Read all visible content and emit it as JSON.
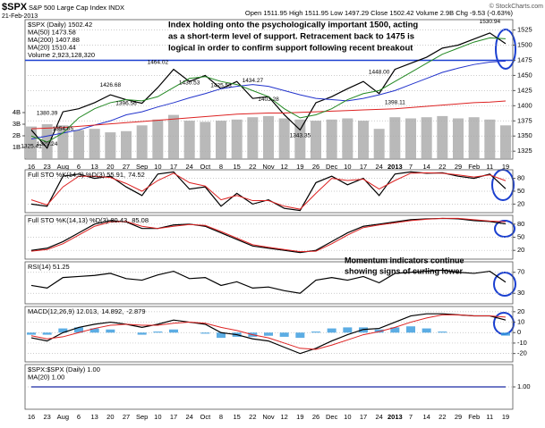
{
  "header": {
    "symbol": "$SPX",
    "name": "S&P 500 Large Cap Index INDX",
    "date": "21-Feb-2013",
    "quote": "Open 1511.95  High 1511.95  Low 1497.29  Close 1502.42  Volume 2.9B  Chg -9.53 (-0.63%)",
    "source": "© StockCharts.com"
  },
  "chart_data": [
    {
      "type": "line",
      "categories": [
        "16",
        "23",
        "Aug",
        "6",
        "13",
        "20",
        "27",
        "Sep",
        "10",
        "17",
        "24",
        "Oct",
        "8",
        "15",
        "22",
        "Nov",
        "12",
        "19",
        "26",
        "Dec",
        "10",
        "17",
        "24",
        "2013",
        "7",
        "14",
        "22",
        "29",
        "Feb",
        "11",
        "19"
      ],
      "ylim": [
        1312,
        1542
      ],
      "yticks": [
        1325,
        1350,
        1375,
        1400,
        1425,
        1450,
        1475,
        1500,
        1525
      ],
      "grid": true,
      "support": 1475,
      "series": [
        {
          "name": "$SPX (Daily) 1502.42",
          "color": "#000000",
          "values": [
            1360,
            1330,
            1390,
            1395,
            1405,
            1418,
            1410,
            1404,
            1430,
            1460,
            1440,
            1450,
            1428,
            1440,
            1412,
            1415,
            1385,
            1360,
            1405,
            1415,
            1428,
            1440,
            1420,
            1460,
            1470,
            1480,
            1495,
            1500,
            1510,
            1520,
            1502.42
          ]
        },
        {
          "name": "MA(50) 1473.58",
          "color": "#2233cc",
          "values": [
            1345,
            1350,
            1355,
            1360,
            1368,
            1375,
            1385,
            1390,
            1398,
            1405,
            1413,
            1420,
            1428,
            1432,
            1435,
            1432,
            1425,
            1418,
            1412,
            1410,
            1408,
            1412,
            1418,
            1425,
            1435,
            1445,
            1455,
            1462,
            1468,
            1472,
            1473.58
          ]
        },
        {
          "name": "MA(200) 1407.88",
          "color": "#dd2222",
          "values": [
            1362,
            1363,
            1364,
            1366,
            1368,
            1370,
            1372,
            1374,
            1376,
            1378,
            1380,
            1382,
            1384,
            1386,
            1387,
            1388,
            1388,
            1389,
            1390,
            1391,
            1392,
            1393,
            1394,
            1395,
            1397,
            1399,
            1401,
            1403,
            1405,
            1406,
            1407.88
          ]
        },
        {
          "name": "MA(20) 1510.44",
          "color": "#228822",
          "values": [
            1350,
            1340,
            1355,
            1380,
            1395,
            1405,
            1410,
            1408,
            1415,
            1430,
            1445,
            1448,
            1440,
            1435,
            1425,
            1415,
            1395,
            1380,
            1385,
            1395,
            1410,
            1420,
            1425,
            1440,
            1455,
            1470,
            1485,
            1495,
            1505,
            1512,
            1510.44
          ]
        }
      ],
      "volume": {
        "name": "Volume 2,923,128,320",
        "color": "#a8a8a8",
        "ylim": [
          0,
          12
        ],
        "yticks": [
          {
            "value": 1,
            "label": "1B"
          },
          {
            "value": 2,
            "label": "2B"
          },
          {
            "value": 3,
            "label": "3B"
          },
          {
            "value": 4,
            "label": "4B"
          }
        ],
        "values": [
          2.8,
          3.0,
          2.9,
          2.5,
          2.6,
          2.3,
          2.4,
          2.9,
          3.4,
          3.8,
          3.3,
          3.2,
          3.3,
          3.4,
          3.6,
          3.7,
          3.5,
          3.4,
          3.3,
          3.4,
          3.5,
          3.3,
          2.6,
          3.6,
          3.5,
          3.6,
          3.7,
          3.5,
          3.6,
          3.4,
          2.9
        ]
      },
      "price_labels": [
        {
          "value": 1380.39,
          "label": "1380.39",
          "at": 1
        },
        {
          "value": 1354.65,
          "label": "1354.65",
          "at": 2
        },
        {
          "value": 1329.24,
          "label": "1329.24",
          "at": 1
        },
        {
          "value": 1325.41,
          "label": "1325.41",
          "at": 0
        },
        {
          "value": 1426.68,
          "label": "1426.68",
          "at": 5
        },
        {
          "value": 1396.56,
          "label": "1396.56",
          "at": 6
        },
        {
          "value": 1464.02,
          "label": "1464.02",
          "at": 8
        },
        {
          "value": 1430.53,
          "label": "1430.53",
          "at": 10
        },
        {
          "value": 1425.53,
          "label": "1425.53",
          "at": 12
        },
        {
          "value": 1434.27,
          "label": "1434.27",
          "at": 14
        },
        {
          "value": 1403.28,
          "label": "1403.28",
          "at": 15
        },
        {
          "value": 1343.35,
          "label": "1343.35",
          "at": 17
        },
        {
          "value": 1448.0,
          "label": "1448.00",
          "at": 22
        },
        {
          "value": 1398.11,
          "label": "1398.11",
          "at": 23
        },
        {
          "value": 1530.94,
          "label": "1530.94",
          "at": 29
        }
      ],
      "note": [
        "Index holding onto the psychologically important 1500, acting",
        "as a short-term level of support. Retracement back to 1475 is",
        "logical in order to confirm support following recent breakout"
      ]
    },
    {
      "type": "line",
      "title_parts": [
        {
          "text": "Full STO %K(14,3) %D(3) 55.91,",
          "color": "#000000"
        },
        {
          "text": "74.52",
          "color": "#dd2222"
        }
      ],
      "ylim": [
        0,
        100
      ],
      "yticks": [
        20,
        50,
        80
      ],
      "grid": true,
      "series": [
        {
          "color": "#000000",
          "values": [
            20,
            15,
            85,
            90,
            80,
            85,
            60,
            40,
            90,
            95,
            55,
            60,
            15,
            45,
            20,
            30,
            10,
            5,
            70,
            85,
            65,
            80,
            40,
            90,
            95,
            92,
            93,
            85,
            80,
            90,
            55.91
          ]
        },
        {
          "color": "#dd2222",
          "values": [
            30,
            18,
            60,
            85,
            85,
            82,
            68,
            50,
            75,
            92,
            70,
            62,
            30,
            40,
            28,
            28,
            15,
            8,
            45,
            80,
            75,
            78,
            55,
            75,
            92,
            93,
            92,
            88,
            83,
            88,
            74.52
          ]
        }
      ]
    },
    {
      "type": "line",
      "title_parts": [
        {
          "text": "Full STO %K(14,13) %D(3) 80.43,",
          "color": "#000000"
        },
        {
          "text": "85.08",
          "color": "#dd2222"
        }
      ],
      "ylim": [
        0,
        100
      ],
      "yticks": [
        20,
        50,
        80
      ],
      "grid": true,
      "series": [
        {
          "color": "#000000",
          "values": [
            20,
            25,
            40,
            60,
            80,
            88,
            85,
            70,
            70,
            78,
            80,
            75,
            60,
            45,
            30,
            25,
            20,
            15,
            20,
            40,
            60,
            75,
            80,
            85,
            90,
            92,
            93,
            92,
            88,
            86,
            80.43
          ]
        },
        {
          "color": "#dd2222",
          "values": [
            18,
            22,
            35,
            55,
            75,
            85,
            86,
            75,
            70,
            75,
            79,
            77,
            63,
            48,
            33,
            27,
            22,
            17,
            18,
            35,
            55,
            72,
            78,
            83,
            88,
            91,
            93,
            93,
            90,
            87,
            85.08
          ]
        }
      ]
    },
    {
      "type": "line",
      "title_parts": [
        {
          "text": "RSI(14) 51.25",
          "color": "#000000"
        }
      ],
      "ylim": [
        10,
        90
      ],
      "yticks": [
        30,
        70
      ],
      "grid": true,
      "series": [
        {
          "color": "#000000",
          "values": [
            45,
            40,
            60,
            62,
            64,
            68,
            58,
            55,
            65,
            72,
            58,
            60,
            45,
            52,
            40,
            42,
            35,
            30,
            55,
            60,
            55,
            62,
            50,
            68,
            70,
            72,
            74,
            70,
            68,
            72,
            51.25
          ]
        }
      ],
      "note": [
        "Momentum indicators continue",
        "showing signs of curling lower"
      ]
    },
    {
      "type": "line",
      "title_parts": [
        {
          "text": "MACD(12,26,9) 12.013,",
          "color": "#000000"
        },
        {
          "text": "14.892,",
          "color": "#dd2222"
        },
        {
          "text": "-2.879",
          "color": "#3399dd"
        }
      ],
      "ylim": [
        -28,
        25
      ],
      "yticks": [
        -20,
        -10,
        0,
        10,
        20
      ],
      "grid": true,
      "histogram": {
        "color": "#3399dd",
        "values": [
          -2,
          -2,
          4,
          5,
          4,
          3,
          0,
          -2,
          1,
          3,
          0,
          -1,
          -5,
          -4,
          -4,
          -3,
          -4,
          -5,
          1,
          4,
          5,
          5,
          3,
          5,
          6,
          4,
          1,
          0,
          0,
          0,
          -2.879
        ]
      },
      "series": [
        {
          "color": "#000000",
          "values": [
            -5,
            -8,
            0,
            5,
            8,
            10,
            8,
            5,
            8,
            12,
            10,
            8,
            0,
            -2,
            -6,
            -8,
            -14,
            -20,
            -15,
            -8,
            -2,
            3,
            4,
            10,
            16,
            18,
            18,
            17,
            16,
            16,
            12.013
          ]
        },
        {
          "color": "#dd2222",
          "values": [
            -3,
            -6,
            -4,
            0,
            4,
            7,
            8,
            7,
            7,
            9,
            10,
            9,
            5,
            2,
            -2,
            -5,
            -10,
            -15,
            -16,
            -12,
            -7,
            -2,
            1,
            5,
            10,
            14,
            17,
            17,
            16,
            16,
            14.892
          ]
        }
      ]
    },
    {
      "type": "line",
      "categories": [
        "16",
        "23",
        "Aug",
        "6",
        "13",
        "20",
        "27",
        "Sep",
        "10",
        "17",
        "24",
        "Oct",
        "8",
        "15",
        "22",
        "Nov",
        "12",
        "19",
        "26",
        "Dec",
        "10",
        "17",
        "24",
        "2013",
        "7",
        "14",
        "22",
        "29",
        "Feb",
        "11",
        "19"
      ],
      "ylim": [
        0.5,
        1.5
      ],
      "yticks": [
        {
          "value": 1,
          "label": "1.00"
        }
      ],
      "grid": true,
      "series": [
        {
          "name": "$SPX:$SPX (Daily) 1.00",
          "color": "#000000",
          "values": [
            1,
            1,
            1,
            1,
            1,
            1,
            1,
            1,
            1,
            1,
            1,
            1,
            1,
            1,
            1,
            1,
            1,
            1,
            1,
            1,
            1,
            1,
            1,
            1,
            1,
            1,
            1,
            1,
            1,
            1,
            1
          ]
        },
        {
          "name": "MA(20) 1.00",
          "color": "#2233cc",
          "values": [
            1,
            1,
            1,
            1,
            1,
            1,
            1,
            1,
            1,
            1,
            1,
            1,
            1,
            1,
            1,
            1,
            1,
            1,
            1,
            1,
            1,
            1,
            1,
            1,
            1,
            1,
            1,
            1,
            1,
            1,
            1
          ]
        }
      ]
    }
  ]
}
